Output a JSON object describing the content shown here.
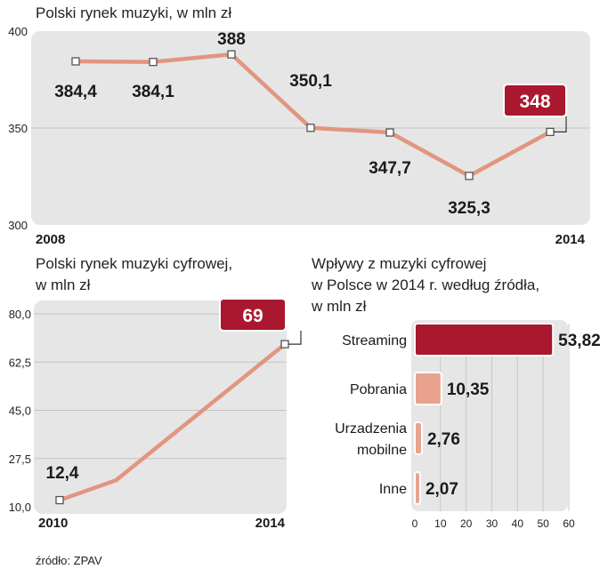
{
  "source": "źródło: ZPAV",
  "colors": {
    "panel": "#e6e6e6",
    "line": "#e2957f",
    "accent": "#a9182f",
    "bar_light": "#e8a28e"
  },
  "chart_data": [
    {
      "type": "line",
      "title": "Polski rynek muzyki, w mln zł",
      "x": [
        2008,
        2009,
        2010,
        2011,
        2012,
        2013,
        2014
      ],
      "values": [
        384.4,
        384.1,
        388,
        350.1,
        347.7,
        325.3,
        348
      ],
      "labels": [
        "384,4",
        "384,1",
        "388",
        "350,1",
        "347,7",
        "325,3",
        "348"
      ],
      "highlight_index": 6,
      "x_tick_labels": [
        "2008",
        "2014"
      ],
      "ylim": [
        300,
        400
      ],
      "y_ticks": [
        300,
        350,
        400
      ],
      "y_tick_labels": [
        "300",
        "350",
        "400"
      ],
      "grid": true
    },
    {
      "type": "line",
      "title": [
        "Polski rynek muzyki cyfrowej,",
        "w mln zł"
      ],
      "x": [
        2010,
        2011,
        2014
      ],
      "values": [
        12.4,
        19.6,
        69
      ],
      "labels": [
        "12,4",
        "",
        "69"
      ],
      "highlight_index": 2,
      "x_tick_labels": [
        "2010",
        "2014"
      ],
      "ylim": [
        10,
        80
      ],
      "y_ticks": [
        10,
        27.5,
        45,
        62.5,
        80
      ],
      "y_tick_labels": [
        "10,0",
        "27,5",
        "45,0",
        "62,5",
        "80,0"
      ],
      "grid": true
    },
    {
      "type": "bar",
      "orientation": "horizontal",
      "title": [
        "Wpływy z muzyki cyfrowej",
        "w Polsce w 2014 r. według źródła,",
        "w mln zł"
      ],
      "categories": [
        [
          "Streaming"
        ],
        [
          "Pobrania"
        ],
        [
          "Urzadzenia",
          "mobilne"
        ],
        [
          "Inne"
        ]
      ],
      "values": [
        53.82,
        10.35,
        2.76,
        2.07
      ],
      "labels": [
        "53,82",
        "10,35",
        "2,76",
        "2,07"
      ],
      "highlight_index": 0,
      "xlim": [
        0,
        60
      ],
      "x_ticks": [
        0,
        10,
        20,
        30,
        40,
        50,
        60
      ],
      "x_tick_labels": [
        "0",
        "10",
        "20",
        "30",
        "40",
        "50",
        "60"
      ]
    }
  ]
}
